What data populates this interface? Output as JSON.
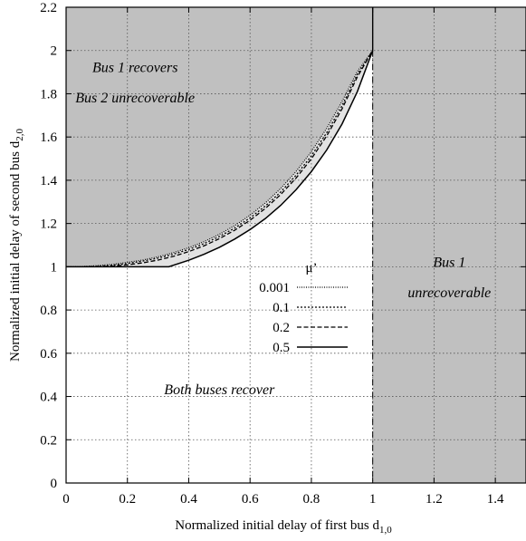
{
  "chart_data": {
    "type": "line",
    "xlabel": "Normalized initial delay of first bus d",
    "xlabel_sub": "1,0",
    "ylabel": "Normalized initial delay of second bus d",
    "ylabel_sub": "2,0",
    "xlim": [
      0,
      1.5
    ],
    "ylim": [
      0,
      2.2
    ],
    "xticks": [
      0,
      0.2,
      0.4,
      0.6,
      0.8,
      1,
      1.2,
      1.4
    ],
    "xtick_labels": [
      "0",
      "0.2",
      "0.4",
      "0.6",
      "0.8",
      "1",
      "1.2",
      "1.4"
    ],
    "yticks": [
      0,
      0.2,
      0.4,
      0.6,
      0.8,
      1,
      1.2,
      1.4,
      1.6,
      1.8,
      2,
      2.2
    ],
    "ytick_labels": [
      "0",
      "0.2",
      "0.4",
      "0.6",
      "0.8",
      "1",
      "1.2",
      "1.4",
      "1.6",
      "1.8",
      "2",
      "2.2"
    ],
    "grid": true,
    "legend_title": "μ’",
    "legend_position": "center",
    "shaded_color": "#c0c0c0",
    "series": [
      {
        "name": "0.001",
        "style": "dotted",
        "x": [
          0,
          0.05,
          0.1,
          0.15,
          0.2,
          0.25,
          0.3,
          0.35,
          0.4,
          0.45,
          0.5,
          0.55,
          0.6,
          0.65,
          0.7,
          0.75,
          0.8,
          0.85,
          0.9,
          0.95,
          1.0
        ],
        "y": [
          1.0,
          1.001,
          1.005,
          1.011,
          1.02,
          1.031,
          1.046,
          1.065,
          1.088,
          1.116,
          1.15,
          1.19,
          1.238,
          1.295,
          1.362,
          1.44,
          1.532,
          1.64,
          1.764,
          1.903,
          2.0
        ]
      },
      {
        "name": "0.1",
        "style": "dense-dotted",
        "x": [
          0.05,
          0.1,
          0.15,
          0.2,
          0.25,
          0.3,
          0.35,
          0.4,
          0.45,
          0.5,
          0.55,
          0.6,
          0.65,
          0.7,
          0.75,
          0.8,
          0.85,
          0.9,
          0.95,
          1.0
        ],
        "y": [
          1.0,
          1.002,
          1.007,
          1.015,
          1.026,
          1.04,
          1.058,
          1.08,
          1.107,
          1.14,
          1.179,
          1.226,
          1.281,
          1.346,
          1.423,
          1.513,
          1.62,
          1.745,
          1.89,
          2.0
        ]
      },
      {
        "name": "0.2",
        "style": "dashed",
        "x": [
          0.1,
          0.15,
          0.2,
          0.25,
          0.3,
          0.35,
          0.4,
          0.45,
          0.5,
          0.55,
          0.6,
          0.65,
          0.7,
          0.75,
          0.8,
          0.85,
          0.9,
          0.95,
          1.0
        ],
        "y": [
          1.0,
          1.003,
          1.009,
          1.018,
          1.031,
          1.048,
          1.07,
          1.097,
          1.13,
          1.169,
          1.215,
          1.27,
          1.334,
          1.41,
          1.499,
          1.605,
          1.73,
          1.878,
          2.0
        ]
      },
      {
        "name": "0.5",
        "style": "solid",
        "x": [
          0,
          0.1,
          0.2,
          0.3,
          0.335,
          0.4,
          0.45,
          0.5,
          0.55,
          0.6,
          0.65,
          0.7,
          0.75,
          0.8,
          0.85,
          0.9,
          0.95,
          1.0
        ],
        "y": [
          1.0,
          1.0,
          1.0,
          1.0,
          1.0,
          1.03,
          1.058,
          1.09,
          1.128,
          1.172,
          1.223,
          1.284,
          1.356,
          1.44,
          1.54,
          1.66,
          1.81,
          2.0
        ]
      }
    ],
    "annotations": [
      {
        "text": "Bus 1 recovers",
        "x": 0.225,
        "y": 1.9
      },
      {
        "text": "Bus 2 unrecoverable",
        "x": 0.225,
        "y": 1.76
      },
      {
        "text": "Bus 1",
        "x": 1.25,
        "y": 1.0
      },
      {
        "text": "unrecoverable",
        "x": 1.25,
        "y": 0.86
      },
      {
        "text": "Both buses recover",
        "x": 0.5,
        "y": 0.41
      }
    ]
  }
}
